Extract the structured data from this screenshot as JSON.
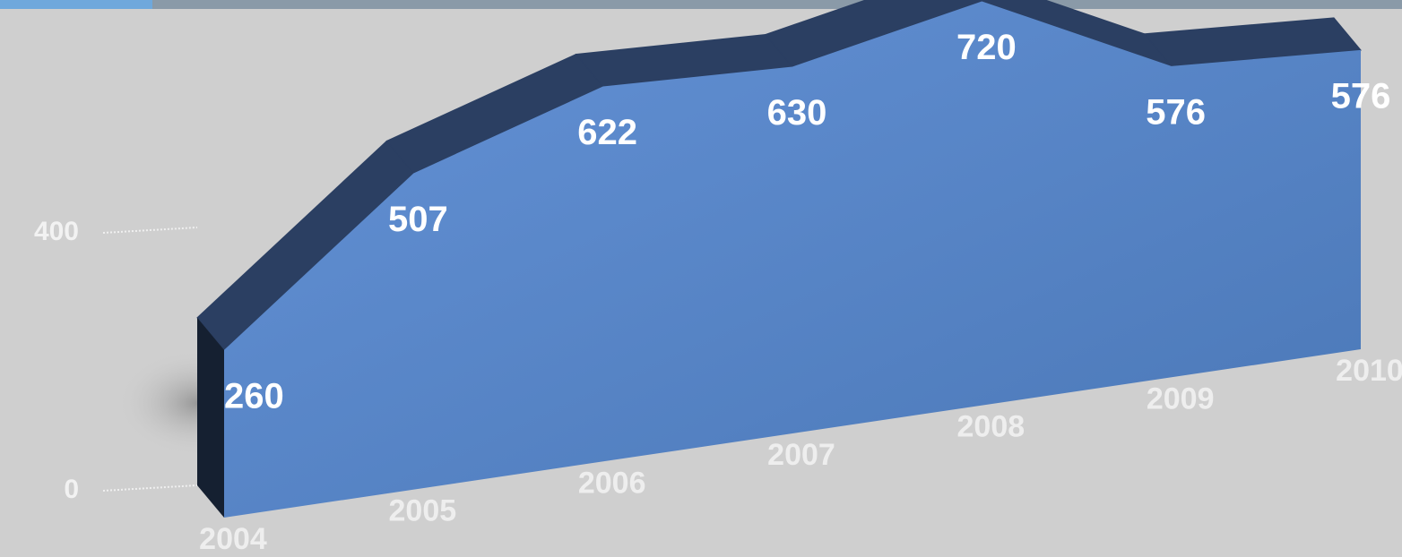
{
  "chart_data": {
    "type": "area3d",
    "categories": [
      "2004",
      "2005",
      "2006",
      "2007",
      "2008",
      "2009",
      "2010"
    ],
    "values": [
      260,
      507,
      622,
      630,
      720,
      576,
      576
    ],
    "color": "#5a87c8",
    "ylim": [
      0,
      800
    ],
    "yticks": [
      0,
      400
    ],
    "grid": true
  }
}
